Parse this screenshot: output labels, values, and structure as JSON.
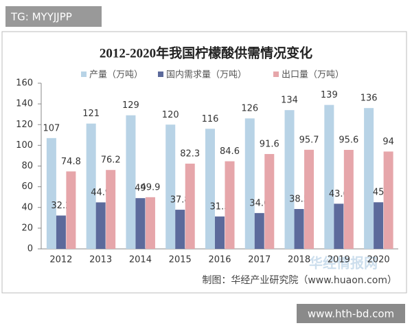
{
  "chart_data": {
    "type": "bar",
    "title": "2012-2020年我国柠檬酸供需情况变化",
    "categories": [
      "2012",
      "2013",
      "2014",
      "2015",
      "2016",
      "2017",
      "2018",
      "2019",
      "2020"
    ],
    "series": [
      {
        "name": "产量（万吨）",
        "color": "#b8d3e6",
        "values": [
          107,
          121,
          129,
          120,
          116,
          126,
          134,
          139,
          136
        ]
      },
      {
        "name": "国内需求量（万吨）",
        "color": "#5c6a9b",
        "values": [
          32.2,
          44.9,
          49,
          37.8,
          31.3,
          34.6,
          38.5,
          43.6,
          45
        ]
      },
      {
        "name": "出口量（万吨）",
        "color": "#e6a6aa",
        "values": [
          74.8,
          76.2,
          49.9,
          82.3,
          84.6,
          91.6,
          95.7,
          95.6,
          94
        ]
      }
    ],
    "ylim": [
      0,
      160
    ],
    "yticks": [
      0,
      20,
      40,
      60,
      80,
      100,
      120,
      140,
      160
    ],
    "grid": false,
    "legend": "top",
    "source": "制图：华经产业研究院（www.huaon.com）"
  },
  "watermark": "华经情报网",
  "tag": "TG: MYYJJPP",
  "site": "www.hth-bd.com"
}
